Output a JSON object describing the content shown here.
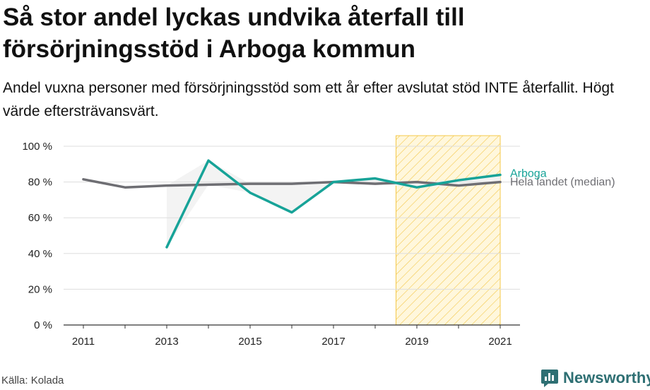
{
  "title": "Så stor andel lyckas undvika återfall till försörjningsstöd i Arboga kommun",
  "subtitle": "Andel vuxna personer med försörjningsstöd som ett år efter avslutat stöd INTE återfallit. Högt värde eftersträvansvärt.",
  "source": "Källa: Kolada",
  "brand": {
    "name": "Newsworthy",
    "icon": "newsworthy-logo-icon",
    "color": "#2e6f73"
  },
  "chart_data": {
    "type": "line",
    "x": [
      2011,
      2012,
      2013,
      2014,
      2015,
      2016,
      2017,
      2018,
      2019,
      2020,
      2021
    ],
    "x_ticks": [
      "2011",
      "2013",
      "2015",
      "2017",
      "2019",
      "2021"
    ],
    "y_ticks": [
      "0 %",
      "20 %",
      "40 %",
      "60 %",
      "80 %",
      "100 %"
    ],
    "ylim": [
      0,
      100
    ],
    "grid": true,
    "highlight_range": [
      2018.5,
      2021
    ],
    "series": [
      {
        "name": "Hela landet (median)",
        "color": "#6e6e73",
        "values": [
          81.5,
          77,
          78,
          78.5,
          79,
          79,
          80,
          79,
          80,
          78,
          80
        ]
      },
      {
        "name": "Arboga",
        "color": "#17a398",
        "values": [
          null,
          null,
          43.5,
          92,
          74,
          63,
          80,
          82,
          77,
          81,
          84
        ]
      }
    ]
  }
}
